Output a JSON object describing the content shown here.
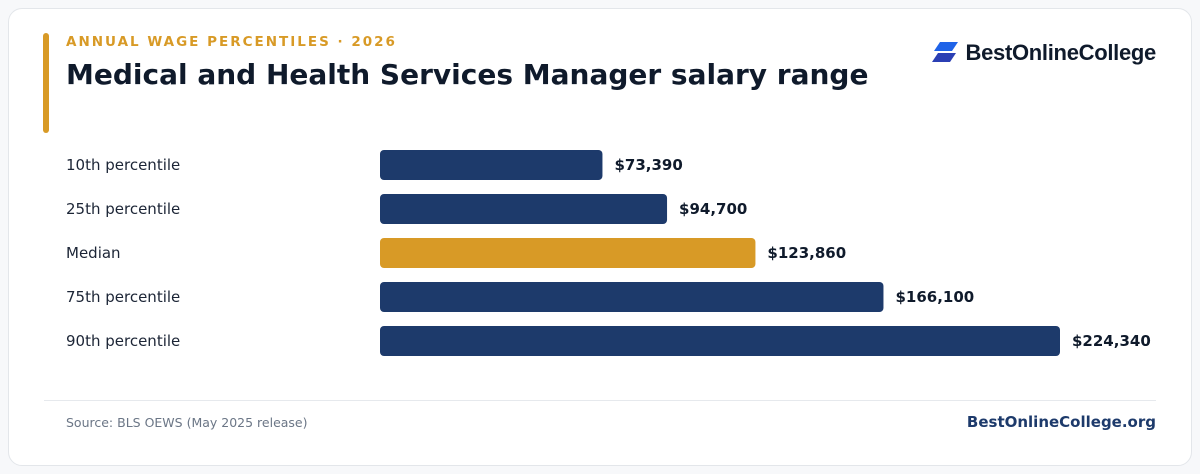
{
  "header": {
    "kicker": "ANNUAL WAGE PERCENTILES · 2026",
    "title": "Medical and Health Services Manager salary range"
  },
  "logo": {
    "text": "BestOnlineCollege",
    "icon": "stacked-parallelogram-logo-icon",
    "colors": [
      "#1f63e8",
      "#2b3fb4"
    ]
  },
  "chart_data": {
    "type": "bar",
    "orientation": "horizontal",
    "categories": [
      "10th percentile",
      "25th percentile",
      "Median",
      "75th percentile",
      "90th percentile"
    ],
    "values": [
      73390,
      94700,
      123860,
      166100,
      224340
    ],
    "value_labels": [
      "$73,390",
      "$94,700",
      "$123,860",
      "$166,100",
      "$224,340"
    ],
    "title": "Medical and Health Services Manager salary range",
    "xlabel": "",
    "ylabel": "",
    "xlim": [
      0,
      224340
    ],
    "grid": false,
    "colors": {
      "default": "#1d3a6b",
      "highlight": "#d89a26"
    },
    "highlight_category": "Median"
  },
  "footer": {
    "source": "Source: BLS OEWS (May 2025 release)",
    "site": "BestOnlineCollege.org"
  }
}
